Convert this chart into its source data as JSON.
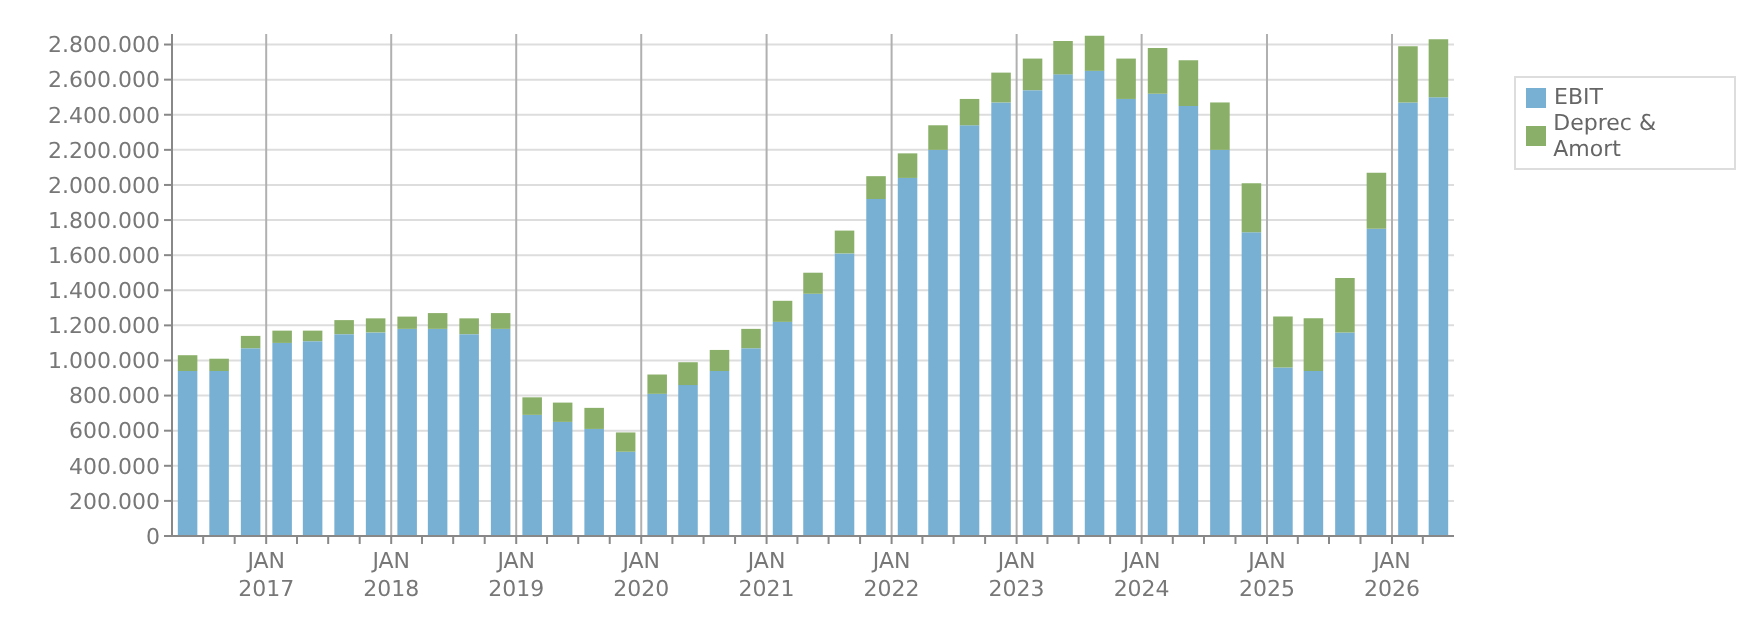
{
  "chart_data": {
    "type": "bar",
    "stacked": true,
    "legend": "top right",
    "grid": true,
    "x": [
      "2016-05-15",
      "2016-08-15",
      "2016-11-15",
      "2017-02-15",
      "2017-05-15",
      "2017-08-15",
      "2017-11-15",
      "2018-02-15",
      "2018-05-15",
      "2018-08-15",
      "2018-11-15",
      "2019-02-15",
      "2019-05-15",
      "2019-08-15",
      "2019-11-15",
      "2020-02-15",
      "2020-05-15",
      "2020-08-15",
      "2020-11-15",
      "2021-02-15",
      "2021-05-15",
      "2021-08-15",
      "2021-11-15",
      "2022-02-15",
      "2022-05-15",
      "2022-08-15",
      "2022-11-15",
      "2023-02-15",
      "2023-05-15",
      "2023-08-15",
      "2023-11-15",
      "2024-02-15",
      "2024-05-15",
      "2024-08-15",
      "2024-11-15",
      "2025-02-15",
      "2025-05-15",
      "2025-08-15",
      "2025-11-15",
      "2026-02-15",
      "2026-05-15"
    ],
    "series": [
      {
        "name": "EBIT",
        "color": "#78b0d3",
        "values": [
          940000,
          940000,
          1070000,
          1100000,
          1110000,
          1150000,
          1160000,
          1180000,
          1180000,
          1150000,
          1180000,
          690000,
          650000,
          610000,
          480000,
          810000,
          860000,
          940000,
          1070000,
          1220000,
          1380000,
          1610000,
          1920000,
          2040000,
          2200000,
          2340000,
          2470000,
          2540000,
          2630000,
          2650000,
          2490000,
          2520000,
          2450000,
          2200000,
          1730000,
          960000,
          940000,
          1160000,
          1750000,
          2470000,
          2500000
        ]
      },
      {
        "name": "Deprec & Amort",
        "color": "#8aaf68",
        "values": [
          90000,
          70000,
          70000,
          70000,
          60000,
          80000,
          80000,
          70000,
          90000,
          90000,
          90000,
          100000,
          110000,
          120000,
          110000,
          110000,
          130000,
          120000,
          110000,
          120000,
          120000,
          130000,
          130000,
          140000,
          140000,
          150000,
          170000,
          180000,
          190000,
          200000,
          230000,
          260000,
          260000,
          270000,
          280000,
          290000,
          300000,
          310000,
          320000,
          320000,
          330000
        ]
      }
    ],
    "ylim": [
      0,
      2860000
    ],
    "yticks": [
      0,
      {
        "value": 200000,
        "label": "200.000"
      },
      {
        "value": 400000,
        "label": "400.000"
      },
      {
        "value": 600000,
        "label": "600.000"
      },
      {
        "value": 800000,
        "label": "800.000"
      },
      {
        "value": 1000000,
        "label": "1.000.000"
      },
      {
        "value": 1200000,
        "label": "1.200.000"
      },
      {
        "value": 1400000,
        "label": "1.400.000"
      },
      {
        "value": 1600000,
        "label": "1.600.000"
      },
      {
        "value": 1800000,
        "label": "1.800.000"
      },
      {
        "value": 2000000,
        "label": "2.000.000"
      },
      {
        "value": 2200000,
        "label": "2.200.000"
      },
      {
        "value": 2400000,
        "label": "2.400.000"
      },
      {
        "value": 2600000,
        "label": "2.600.000"
      },
      {
        "value": 2800000,
        "label": "2.800.000"
      }
    ],
    "xlim": [
      "2016-04",
      "2026-07"
    ],
    "xticks": [
      {
        "value": "2016-07",
        "label": null
      },
      {
        "value": "2016-10",
        "label": null
      },
      {
        "value": "2017-01",
        "label": "JAN 2017"
      },
      {
        "value": "2017-04",
        "label": null
      },
      {
        "value": "2017-07",
        "label": null
      },
      {
        "value": "2017-10",
        "label": null
      },
      {
        "value": "2018-01",
        "label": "JAN 2018"
      },
      {
        "value": "2018-04",
        "label": null
      },
      {
        "value": "2018-07",
        "label": null
      },
      {
        "value": "2018-10",
        "label": null
      },
      {
        "value": "2019-01",
        "label": "JAN 2019"
      },
      {
        "value": "2019-04",
        "label": null
      },
      {
        "value": "2019-07",
        "label": null
      },
      {
        "value": "2019-10",
        "label": null
      },
      {
        "value": "2020-01",
        "label": "JAN 2020"
      },
      {
        "value": "2020-04",
        "label": null
      },
      {
        "value": "2020-07",
        "label": null
      },
      {
        "value": "2020-10",
        "label": null
      },
      {
        "value": "2021-01",
        "label": "JAN 2021"
      },
      {
        "value": "2021-04",
        "label": null
      },
      {
        "value": "2021-07",
        "label": null
      },
      {
        "value": "2021-10",
        "label": null
      },
      {
        "value": "2022-01",
        "label": "JAN 2022"
      },
      {
        "value": "2022-04",
        "label": null
      },
      {
        "value": "2022-07",
        "label": null
      },
      {
        "value": "2022-10",
        "label": null
      },
      {
        "value": "2023-01",
        "label": "JAN 2023"
      },
      {
        "value": "2023-04",
        "label": null
      },
      {
        "value": "2023-07",
        "label": null
      },
      {
        "value": "2023-10",
        "label": null
      },
      {
        "value": "2024-01",
        "label": "JAN 2024"
      },
      {
        "value": "2024-04",
        "label": null
      },
      {
        "value": "2024-07",
        "label": null
      },
      {
        "value": "2024-10",
        "label": null
      },
      {
        "value": "2025-01",
        "label": "JAN 2025"
      },
      {
        "value": "2025-04",
        "label": null
      },
      {
        "value": "2025-07",
        "label": null
      },
      {
        "value": "2025-10",
        "label": null
      },
      {
        "value": "2026-01",
        "label": "JAN 2026"
      },
      {
        "value": "2026-04",
        "label": null
      }
    ]
  }
}
